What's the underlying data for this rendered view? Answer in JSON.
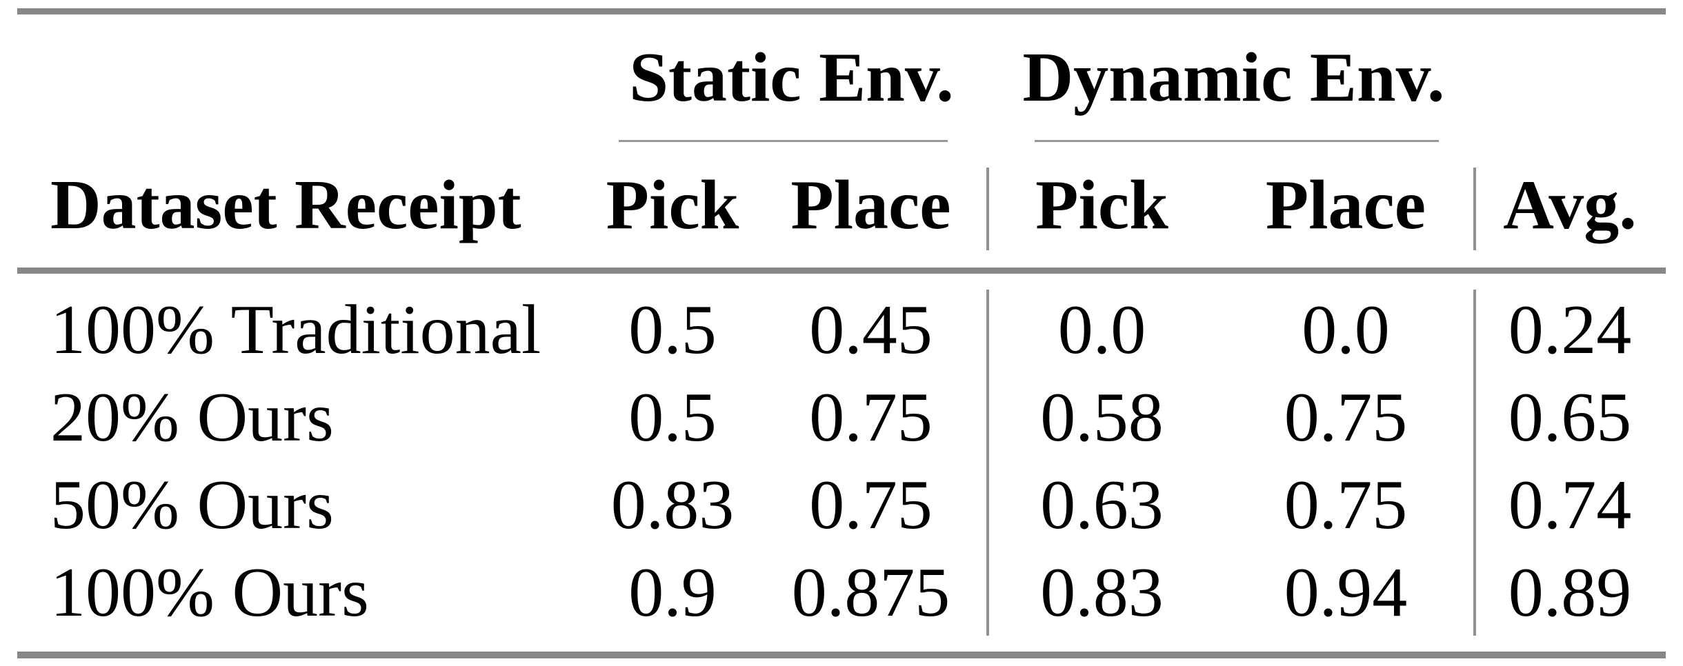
{
  "table": {
    "group_headers": [
      {
        "label": "Static Env."
      },
      {
        "label": "Dynamic Env."
      }
    ],
    "column_headers": {
      "dataset": "Dataset Receipt",
      "static_pick": "Pick",
      "static_place": "Place",
      "dynamic_pick": "Pick",
      "dynamic_place": "Place",
      "avg": "Avg."
    },
    "rows": [
      {
        "label": "100% Traditional",
        "static_pick": "0.5",
        "static_place": "0.45",
        "dynamic_pick": "0.0",
        "dynamic_place": "0.0",
        "avg": "0.24"
      },
      {
        "label": "20% Ours",
        "static_pick": "0.5",
        "static_place": "0.75",
        "dynamic_pick": "0.58",
        "dynamic_place": "0.75",
        "avg": "0.65"
      },
      {
        "label": "50% Ours",
        "static_pick": "0.83",
        "static_place": "0.75",
        "dynamic_pick": "0.63",
        "dynamic_place": "0.75",
        "avg": "0.74"
      },
      {
        "label": "100% Ours",
        "static_pick": "0.9",
        "static_place": "0.875",
        "dynamic_pick": "0.83",
        "dynamic_place": "0.94",
        "avg": "0.89"
      }
    ],
    "colors": {
      "text": "#000000",
      "background": "#ffffff",
      "rule_thick": "#878787",
      "rule_thin": "#979797"
    }
  },
  "chart_data": {
    "type": "table",
    "columns": [
      "Dataset Receipt",
      "Static Env. Pick",
      "Static Env. Place",
      "Dynamic Env. Pick",
      "Dynamic Env. Place",
      "Avg."
    ],
    "rows": [
      [
        "100% Traditional",
        0.5,
        0.45,
        0.0,
        0.0,
        0.24
      ],
      [
        "20% Ours",
        0.5,
        0.75,
        0.58,
        0.75,
        0.65
      ],
      [
        "50% Ours",
        0.83,
        0.75,
        0.63,
        0.75,
        0.74
      ],
      [
        "100% Ours",
        0.9,
        0.875,
        0.83,
        0.94,
        0.89
      ]
    ]
  }
}
